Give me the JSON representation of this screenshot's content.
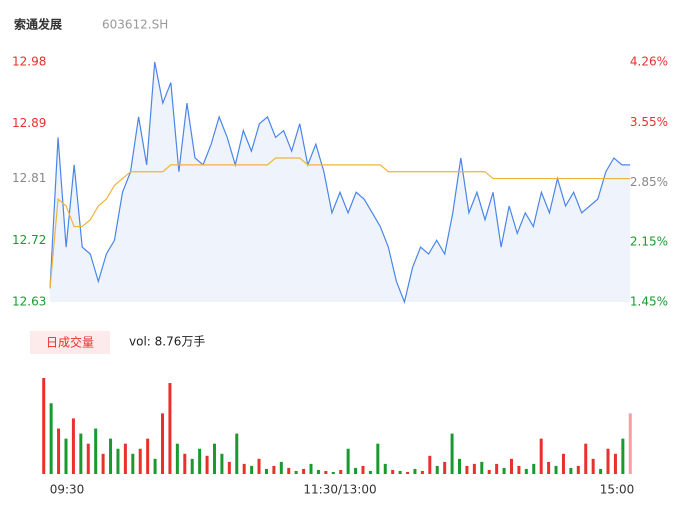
{
  "chart_data": [
    {
      "type": "line",
      "title": "索通发展",
      "subtitle": "603612.SH",
      "ylim": [
        12.63,
        12.98
      ],
      "yticks": [
        12.98,
        12.89,
        12.81,
        12.72,
        12.63
      ],
      "y2lim": [
        1.45,
        4.26
      ],
      "y2ticks": [
        {
          "value": 4.26,
          "label": "4.26%"
        },
        {
          "value": 3.55,
          "label": "3.55%"
        },
        {
          "value": 2.85,
          "label": "2.85%"
        },
        {
          "value": 2.15,
          "label": "2.15%"
        },
        {
          "value": 1.45,
          "label": "1.45%"
        }
      ],
      "up_color": "#e8302c",
      "down_color": "#1a9a2e",
      "flat_color": "#888888",
      "series": [
        {
          "name": "price",
          "color": "#4a86e8",
          "values": [
            12.65,
            12.87,
            12.71,
            12.83,
            12.71,
            12.7,
            12.66,
            12.7,
            12.72,
            12.79,
            12.82,
            12.9,
            12.83,
            12.98,
            12.92,
            12.95,
            12.82,
            12.92,
            12.84,
            12.83,
            12.86,
            12.9,
            12.87,
            12.83,
            12.88,
            12.85,
            12.89,
            12.9,
            12.87,
            12.88,
            12.85,
            12.89,
            12.83,
            12.86,
            12.82,
            12.76,
            12.79,
            12.76,
            12.79,
            12.78,
            12.76,
            12.74,
            12.71,
            12.66,
            12.63,
            12.68,
            12.71,
            12.7,
            12.72,
            12.7,
            12.76,
            12.84,
            12.76,
            12.79,
            12.75,
            12.79,
            12.71,
            12.77,
            12.73,
            12.76,
            12.74,
            12.79,
            12.76,
            12.81,
            12.77,
            12.79,
            12.76,
            12.77,
            12.78,
            12.82,
            12.84,
            12.83,
            12.83
          ]
        },
        {
          "name": "average",
          "color": "#f0b43c",
          "values": [
            12.65,
            12.78,
            12.77,
            12.74,
            12.74,
            12.75,
            12.77,
            12.78,
            12.8,
            12.81,
            12.82,
            12.82,
            12.82,
            12.82,
            12.82,
            12.83,
            12.83,
            12.83,
            12.83,
            12.83,
            12.83,
            12.83,
            12.83,
            12.83,
            12.83,
            12.83,
            12.83,
            12.83,
            12.84,
            12.84,
            12.84,
            12.84,
            12.83,
            12.83,
            12.83,
            12.83,
            12.83,
            12.83,
            12.83,
            12.83,
            12.83,
            12.83,
            12.82,
            12.82,
            12.82,
            12.82,
            12.82,
            12.82,
            12.82,
            12.82,
            12.82,
            12.82,
            12.82,
            12.82,
            12.82,
            12.81,
            12.81,
            12.81,
            12.81,
            12.81,
            12.81,
            12.81,
            12.81,
            12.81,
            12.81,
            12.81,
            12.81,
            12.81,
            12.81,
            12.81,
            12.81,
            12.81,
            12.81
          ]
        }
      ]
    },
    {
      "type": "bar",
      "legend_label": "日成交量",
      "volume_text": "vol: 8.76万手",
      "time_labels": [
        "09:30",
        "11:30/13:00",
        "15:00"
      ],
      "values": [
        95,
        70,
        45,
        35,
        55,
        40,
        30,
        45,
        20,
        35,
        25,
        30,
        20,
        25,
        35,
        15,
        60,
        90,
        30,
        20,
        15,
        25,
        18,
        30,
        20,
        12,
        40,
        10,
        8,
        15,
        5,
        8,
        12,
        6,
        3,
        5,
        10,
        4,
        3,
        2,
        4,
        25,
        6,
        8,
        3,
        30,
        10,
        4,
        3,
        2,
        5,
        3,
        18,
        8,
        12,
        40,
        15,
        8,
        10,
        12,
        4,
        10,
        6,
        15,
        8,
        5,
        10,
        35,
        12,
        8,
        20,
        6,
        8,
        30,
        15,
        5,
        25,
        20,
        35,
        60
      ],
      "colors": [
        "#e8302c",
        "#1a9a2e",
        "#e8302c",
        "#1a9a2e",
        "#e8302c",
        "#1a9a2e",
        "#e8302c",
        "#1a9a2e",
        "#e8302c",
        "#1a9a2e",
        "#1a9a2e",
        "#e8302c",
        "#1a9a2e",
        "#e8302c",
        "#e8302c",
        "#1a9a2e",
        "#e8302c",
        "#e8302c",
        "#1a9a2e",
        "#e8302c",
        "#1a9a2e",
        "#1a9a2e",
        "#e8302c",
        "#1a9a2e",
        "#1a9a2e",
        "#e8302c",
        "#1a9a2e",
        "#e8302c",
        "#1a9a2e",
        "#e8302c",
        "#1a9a2e",
        "#e8302c",
        "#1a9a2e",
        "#e8302c",
        "#1a9a2e",
        "#e8302c",
        "#1a9a2e",
        "#1a9a2e",
        "#e8302c",
        "#1a9a2e",
        "#e8302c",
        "#1a9a2e",
        "#1a9a2e",
        "#e8302c",
        "#1a9a2e",
        "#1a9a2e",
        "#1a9a2e",
        "#e8302c",
        "#1a9a2e",
        "#e8302c",
        "#1a9a2e",
        "#e8302c",
        "#e8302c",
        "#1a9a2e",
        "#e8302c",
        "#1a9a2e",
        "#1a9a2e",
        "#e8302c",
        "#e8302c",
        "#1a9a2e",
        "#e8302c",
        "#e8302c",
        "#1a9a2e",
        "#e8302c",
        "#e8302c",
        "#1a9a2e",
        "#1a9a2e",
        "#e8302c",
        "#e8302c",
        "#1a9a2e",
        "#e8302c",
        "#1a9a2e",
        "#e8302c",
        "#e8302c",
        "#e8302c",
        "#1a9a2e",
        "#e8302c",
        "#e8302c",
        "#1a9a2e",
        "#f4a0a0"
      ]
    }
  ]
}
